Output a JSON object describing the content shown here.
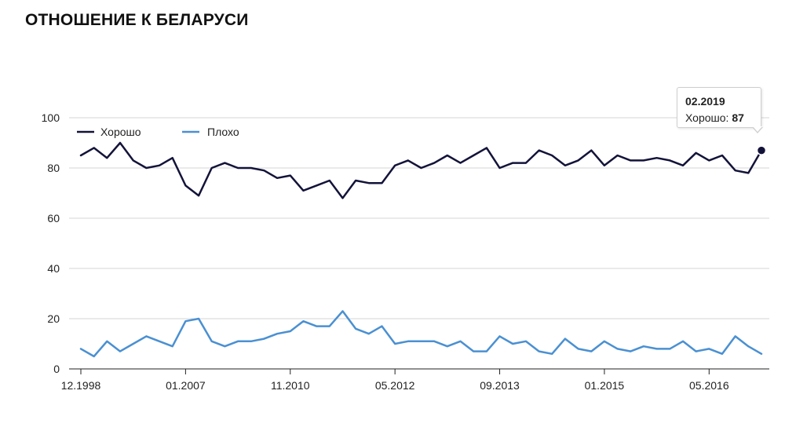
{
  "title": "ОТНОШЕНИЕ К БЕЛАРУСИ",
  "colors": {
    "good": "#13133a",
    "bad": "#4a90d2",
    "grid": "#d6d6d6",
    "axis": "#222222"
  },
  "tooltip": {
    "date": "02.2019",
    "label": "Хорошо:",
    "value": "87"
  },
  "chart_data": {
    "type": "line",
    "title": "ОТНОШЕНИЕ К БЕЛАРУСИ",
    "xlabel": "",
    "ylabel": "",
    "ylim": [
      0,
      100
    ],
    "yticks": [
      "0",
      "20",
      "40",
      "60",
      "80",
      "100"
    ],
    "xtick_labels": [
      {
        "label": "12.1998",
        "index": 0
      },
      {
        "label": "01.2007",
        "index": 8
      },
      {
        "label": "11.2010",
        "index": 16
      },
      {
        "label": "05.2012",
        "index": 24
      },
      {
        "label": "09.2013",
        "index": 32
      },
      {
        "label": "01.2015",
        "index": 40
      },
      {
        "label": "05.2016",
        "index": 48
      }
    ],
    "grid": true,
    "legend_position": "top-left",
    "series": [
      {
        "name": "Хорошо",
        "values": [
          85,
          88,
          84,
          90,
          83,
          80,
          81,
          84,
          73,
          69,
          80,
          82,
          80,
          80,
          79,
          76,
          77,
          71,
          73,
          75,
          68,
          75,
          74,
          74,
          81,
          83,
          80,
          82,
          85,
          82,
          85,
          88,
          80,
          82,
          82,
          87,
          85,
          81,
          83,
          87,
          81,
          85,
          83,
          83,
          84,
          83,
          81,
          86,
          83,
          85,
          79,
          78,
          87
        ]
      },
      {
        "name": "Плохо",
        "values": [
          8,
          5,
          11,
          7,
          10,
          13,
          11,
          9,
          19,
          20,
          11,
          9,
          11,
          11,
          12,
          14,
          15,
          19,
          17,
          17,
          23,
          16,
          14,
          17,
          10,
          11,
          11,
          11,
          9,
          11,
          7,
          7,
          13,
          10,
          11,
          7,
          6,
          12,
          8,
          7,
          11,
          8,
          7,
          9,
          8,
          8,
          11,
          7,
          8,
          6,
          13,
          9,
          6
        ]
      }
    ]
  }
}
